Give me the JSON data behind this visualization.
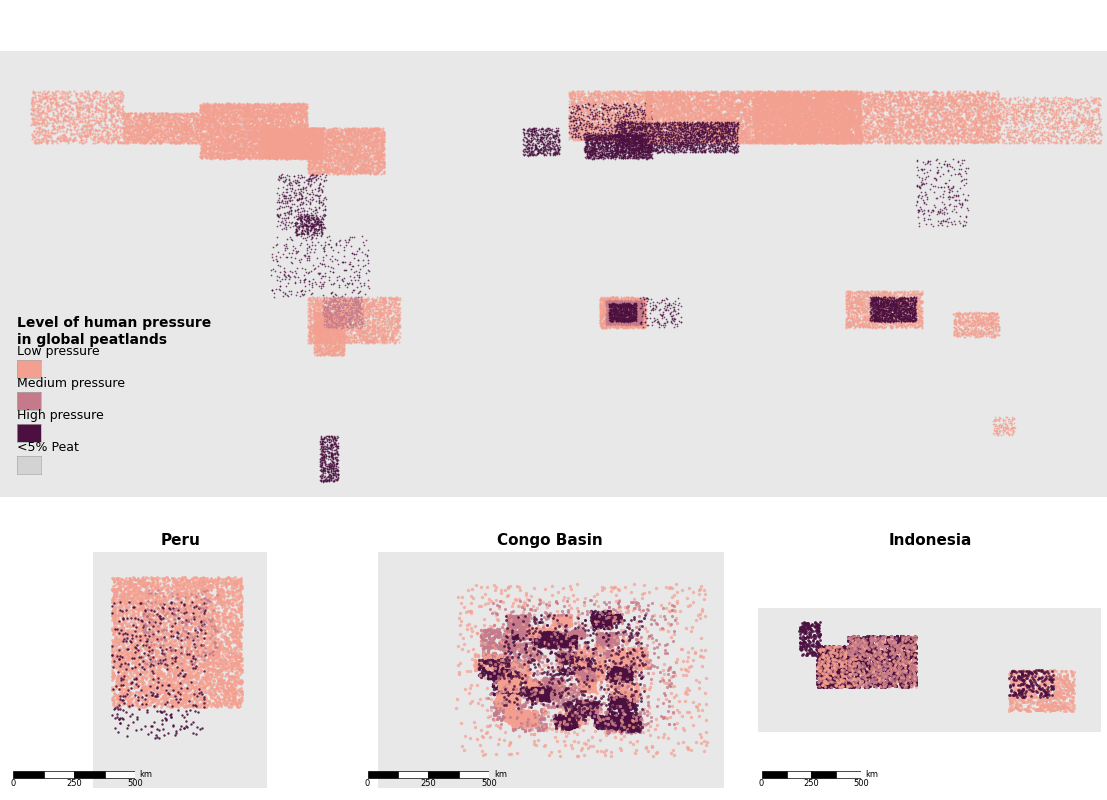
{
  "title": "Level of human pressure\nin global peatlands",
  "legend_entries": [
    {
      "label": "Low pressure",
      "color": "#F4A090"
    },
    {
      "label": "Medium pressure",
      "color": "#C47A8A"
    },
    {
      "label": "High pressure",
      "color": "#4B1040"
    },
    {
      "label": "<5% Peat",
      "color": "#D3D3D3"
    }
  ],
  "subplot_titles": [
    "Peru",
    "Congo Basin",
    "Indonesia"
  ],
  "background_color": "#FFFFFF",
  "land_color": "#E8E8E8",
  "border_color": "#888888",
  "ocean_color": "#FFFFFF",
  "low_pressure_color": "#F4A090",
  "medium_pressure_color": "#C47A8A",
  "high_pressure_color": "#4B1040",
  "peat_color": "#D3D3D3",
  "title_fontsize": 10,
  "label_fontsize": 9,
  "legend_title_fontsize": 10
}
